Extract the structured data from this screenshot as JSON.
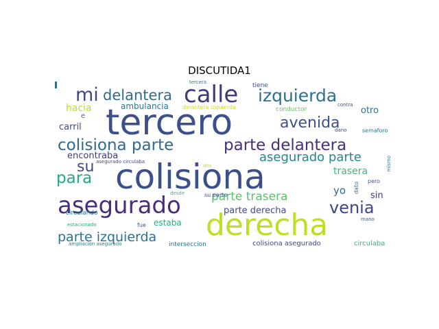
{
  "title": "DISCUTIDA1",
  "words": {
    "colisiona": {
      "text": "colisiona",
      "color": "#3b4f8a"
    },
    "tercero": {
      "text": "tercero",
      "color": "#3b4f8a"
    },
    "derecha": {
      "text": "derecha",
      "color": "#bddf26"
    },
    "asegurado": {
      "text": "asegurado",
      "color": "#472d7b"
    },
    "calle": {
      "text": "calle",
      "color": "#3b3a7a"
    },
    "izquierda": {
      "text": "izquierda",
      "color": "#2e6f8e"
    },
    "mi": {
      "text": "mi",
      "color": "#3f4788"
    },
    "delantera": {
      "text": "delantera",
      "color": "#2f6b8e"
    },
    "avenida": {
      "text": "avenida",
      "color": "#3b4f8a"
    },
    "colisiona_parte": {
      "text": "colisiona parte",
      "color": "#31688e"
    },
    "parte_delantera": {
      "text": "parte delantera",
      "color": "#462f7c"
    },
    "su": {
      "text": "su",
      "color": "#3e4a89"
    },
    "para": {
      "text": "para",
      "color": "#23a883"
    },
    "asegurado_parte": {
      "text": "asegurado parte",
      "color": "#23888e"
    },
    "venia": {
      "text": "venia",
      "color": "#414487"
    },
    "parte_trasera": {
      "text": "parte trasera",
      "color": "#54c568"
    },
    "parte_izquierda": {
      "text": "parte izquierda",
      "color": "#2c728e"
    },
    "parte_derecha": {
      "text": "parte derecha",
      "color": "#3e4c8a"
    },
    "hacia": {
      "text": "hacia",
      "color": "#bddf26"
    },
    "ambulancia": {
      "text": "ambulancia",
      "color": "#2c738e"
    },
    "carril": {
      "text": "carril",
      "color": "#3e4a89"
    },
    "encontraba": {
      "text": "encontraba",
      "color": "#443a83"
    },
    "trasera": {
      "text": "trasera",
      "color": "#3dbc74"
    },
    "otro": {
      "text": "otro",
      "color": "#2c738e"
    },
    "yo": {
      "text": "yo",
      "color": "#2e6e8e"
    },
    "sin": {
      "text": "sin",
      "color": "#453781"
    },
    "estaba": {
      "text": "estaba",
      "color": "#29af7f"
    },
    "circulaba": {
      "text": "circulaba",
      "color": "#35b779"
    },
    "colisiona_asegurado": {
      "text": "colisiona asegurado",
      "color": "#3e4989"
    },
    "e": {
      "text": "e",
      "color": "#2c728e"
    },
    "conductor": {
      "text": "conductor",
      "color": "#5ec962"
    },
    "tiene": {
      "text": "tiene",
      "color": "#3e4c8a"
    },
    "delantera_izquierda": {
      "text": "delantera izquierda",
      "color": "#c8e020"
    },
    "tercera": {
      "text": "tercera",
      "color": "#2a788e"
    },
    "contra": {
      "text": "contra",
      "color": "#3b528b"
    },
    "dano": {
      "text": "dano",
      "color": "#3e4a89"
    },
    "semaforo": {
      "text": "semaforo",
      "color": "#2a768e"
    },
    "asegurado_circulaba": {
      "text": "asegurado circulaba",
      "color": "#414487"
    },
    "dos": {
      "text": "dos",
      "color": "#b5de2b"
    },
    "su_parte": {
      "text": "su parte",
      "color": "#3e4989"
    },
    "mismo": {
      "text": "mismo",
      "color": "#2a788e"
    },
    "pero": {
      "text": "pero",
      "color": "#3b528b"
    },
    "dato": {
      "text": "dato",
      "color": "#31688e"
    },
    "desde": {
      "text": "desde",
      "color": "#3dbc74"
    },
    "mano": {
      "text": "mano",
      "color": "#3b528b"
    },
    "circulando": {
      "text": "circulando",
      "color": "#2c738e"
    },
    "estacionado": {
      "text": "estacionado",
      "color": "#22a884"
    },
    "fue": {
      "text": "fue",
      "color": "#3b528b"
    },
    "ampliacion_asegurado": {
      "text": "ampliacion asegurado",
      "color": "#2a788e"
    },
    "interseccion": {
      "text": "interseccion",
      "color": "#2c728e"
    }
  }
}
